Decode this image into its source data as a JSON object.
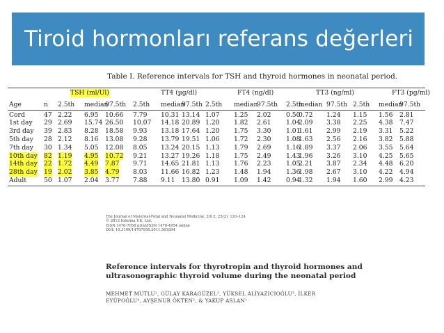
{
  "slide": {
    "title": "Tiroid hormonları referans değerleri"
  },
  "table": {
    "caption": "Table I. Reference intervals for TSH and thyroid hormones in neonatal period.",
    "groups": [
      "TSH (ml/Ul)",
      "TT4 (µg/dl)",
      "FT4 (ng/dl)",
      "TT3 (ng/ml)",
      "FT3 (pg/ml)"
    ],
    "col_age": "Age",
    "col_n": "n",
    "subheaders": [
      "2.5th",
      "median",
      "97.5th"
    ],
    "rows": [
      {
        "age": "Cord",
        "n": "47",
        "v": [
          "2.22",
          "6.95",
          "10.66",
          "7.79",
          "10.31",
          "13.14",
          "1.07",
          "1.25",
          "2.02",
          "0.50",
          "0.72",
          "1.24",
          "1.15",
          "1.56",
          "2.81"
        ]
      },
      {
        "age": "1st day",
        "n": "29",
        "v": [
          "2.69",
          "15.74",
          "26.50",
          "10.07",
          "14.18",
          "20.89",
          "1.20",
          "1.82",
          "2.61",
          "1.04",
          "2.09",
          "3.38",
          "2.25",
          "4.38",
          "7.47"
        ]
      },
      {
        "age": "3rd day",
        "n": "39",
        "v": [
          "2.83",
          "8.28",
          "18.58",
          "9.93",
          "13.18",
          "17.64",
          "1.20",
          "1.75",
          "3.30",
          "1.01",
          "1.61",
          "2.99",
          "2.19",
          "3.31",
          "5.22"
        ]
      },
      {
        "age": "5th day",
        "n": "28",
        "v": [
          "2.12",
          "8.16",
          "13.08",
          "9.28",
          "13.79",
          "19.51",
          "1.06",
          "1.72",
          "2.30",
          "1.08",
          "1.63",
          "2.56",
          "2.16",
          "3.82",
          "5.88"
        ]
      },
      {
        "age": "7th day",
        "n": "30",
        "v": [
          "1.34",
          "5.05",
          "12.08",
          "8.05",
          "13.24",
          "20.15",
          "1.13",
          "1.79",
          "2.69",
          "1.16",
          "1.89",
          "3.37",
          "2.06",
          "3.55",
          "5.64"
        ]
      },
      {
        "age": "10th day",
        "n": "82",
        "v": [
          "1.19",
          "4.95",
          "10.72",
          "9.21",
          "13.27",
          "19.26",
          "1.18",
          "1.75",
          "2.49",
          "1.43",
          "1.96",
          "3.26",
          "3.10",
          "4.25",
          "5.65"
        ],
        "highlight": true
      },
      {
        "age": "14th day",
        "n": "22",
        "v": [
          "1.72",
          "4.49",
          "7.87",
          "9.71",
          "14.65",
          "21.81",
          "1.13",
          "1.76",
          "2.23",
          "1.05",
          "2.21",
          "3.87",
          "2.34",
          "4.48",
          "6.20"
        ],
        "highlight": true
      },
      {
        "age": "28th day",
        "n": "19",
        "v": [
          "2.02",
          "3.85",
          "4.79",
          "8.03",
          "11.66",
          "16.82",
          "1.23",
          "1.48",
          "1.94",
          "1.36",
          "1.98",
          "2.67",
          "3.10",
          "4.22",
          "4.94"
        ],
        "highlight": true
      },
      {
        "age": "Adult",
        "n": "50",
        "v": [
          "1.07",
          "2.04",
          "3.77",
          "7.88",
          "9.11",
          "13.80",
          "0.91",
          "1.09",
          "1.42",
          "0.94",
          "1.32",
          "1.94",
          "1.60",
          "2.99",
          "4.23"
        ]
      }
    ]
  },
  "reference": {
    "lines": [
      "The Journal of Maternal-Fetal and Neonatal Medicine, 2012; 25(2): 120–124",
      "© 2012 Informa UK, Ltd.",
      "ISSN 1476-7058 print/ISSN 1476-4954 online",
      "DOI: 10.3109/14767058.2011.561894"
    ]
  },
  "paper": {
    "title_lines": [
      "Reference intervals for thyrotropin and thyroid hormones and",
      "ultrasonographic thyroid volume during the neonatal period"
    ],
    "author_lines": [
      "MEHMET MUTLU¹, GÜLAY KARAGÜZEL², YÜKSEL ALİYAZICIOĞLU³, İLKER",
      "EYÜPOĞLU⁴, AYŞENUR ÖKTEN², & YAKUP ASLAN¹"
    ]
  },
  "colors": {
    "banner": "#3e8bc1",
    "highlight": "#ffff3a"
  }
}
